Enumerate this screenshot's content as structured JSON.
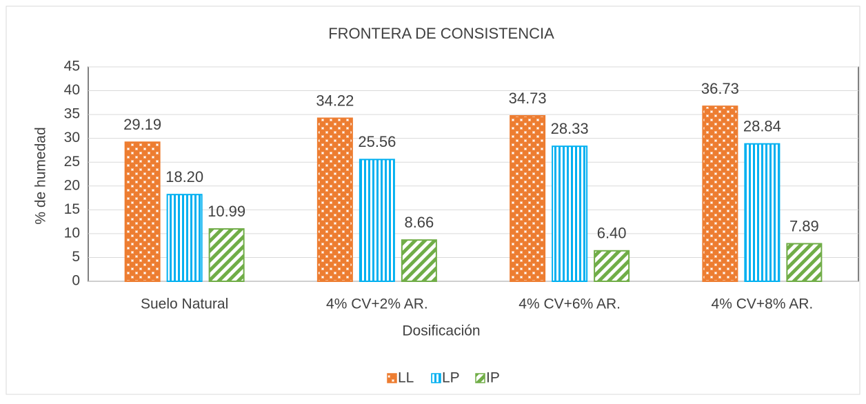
{
  "chart_data": {
    "type": "bar",
    "title": "FRONTERA DE CONSISTENCIA",
    "x_label": "Dosificación",
    "y_label": "% de humedad",
    "categories": [
      "Suelo Natural",
      "4% CV+2% AR.",
      "4% CV+6% AR.",
      "4% CV+8% AR."
    ],
    "series": [
      {
        "name": "LL",
        "color": "#ED7D31",
        "values": [
          29.19,
          34.22,
          34.73,
          36.73
        ],
        "value_labels": [
          "29.19",
          "34.22",
          "34.73",
          "36.73"
        ]
      },
      {
        "name": "LP",
        "color": "#00B0F0",
        "values": [
          18.2,
          25.56,
          28.33,
          28.84
        ],
        "value_labels": [
          "18.20",
          "25.56",
          "28.33",
          "28.84"
        ]
      },
      {
        "name": "IP",
        "color": "#70AD47",
        "values": [
          10.99,
          8.66,
          6.4,
          7.89
        ],
        "value_labels": [
          "10.99",
          "8.66",
          "6.40",
          "7.89"
        ]
      }
    ],
    "ylim": [
      0,
      45
    ],
    "yticks": [
      0,
      5,
      10,
      15,
      20,
      25,
      30,
      35,
      40,
      45
    ],
    "grid": true,
    "legend": "bottom"
  }
}
